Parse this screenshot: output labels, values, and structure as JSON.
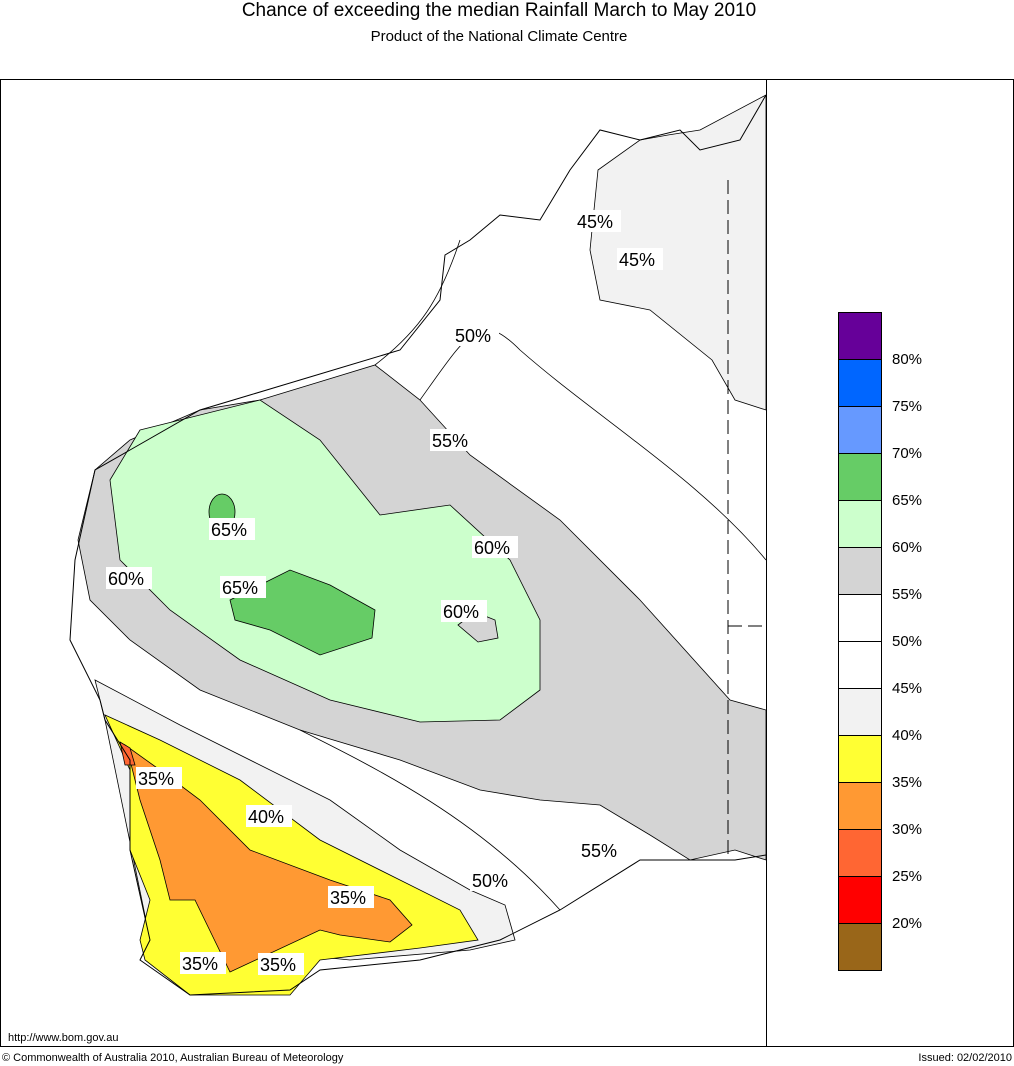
{
  "header": {
    "title": "Chance of exceeding the median Rainfall March to May 2010",
    "subtitle": "Product of the National Climate Centre"
  },
  "contour_labels": [
    "45%",
    "45%",
    "50%",
    "55%",
    "60%",
    "65%",
    "65%",
    "60%",
    "60%",
    "35%",
    "40%",
    "35%",
    "50%",
    "55%",
    "35%",
    "35%"
  ],
  "legend": {
    "colors": [
      "#660099",
      "#0066ff",
      "#6699ff",
      "#66cc66",
      "#ccffcc",
      "#d4d4d4",
      "#ffffff",
      "#ffffff",
      "#f2f2f2",
      "#ffff33",
      "#ff9933",
      "#ff6633",
      "#ff0000",
      "#996619"
    ],
    "labels": [
      "80%",
      "75%",
      "70%",
      "65%",
      "60%",
      "55%",
      "50%",
      "45%",
      "40%",
      "35%",
      "30%",
      "25%",
      "20%"
    ]
  },
  "footer": {
    "url": "http://www.bom.gov.au",
    "copyright": "© Commonwealth of Australia 2010, Australian Bureau of Meteorology",
    "issued": "Issued: 02/02/2010"
  }
}
